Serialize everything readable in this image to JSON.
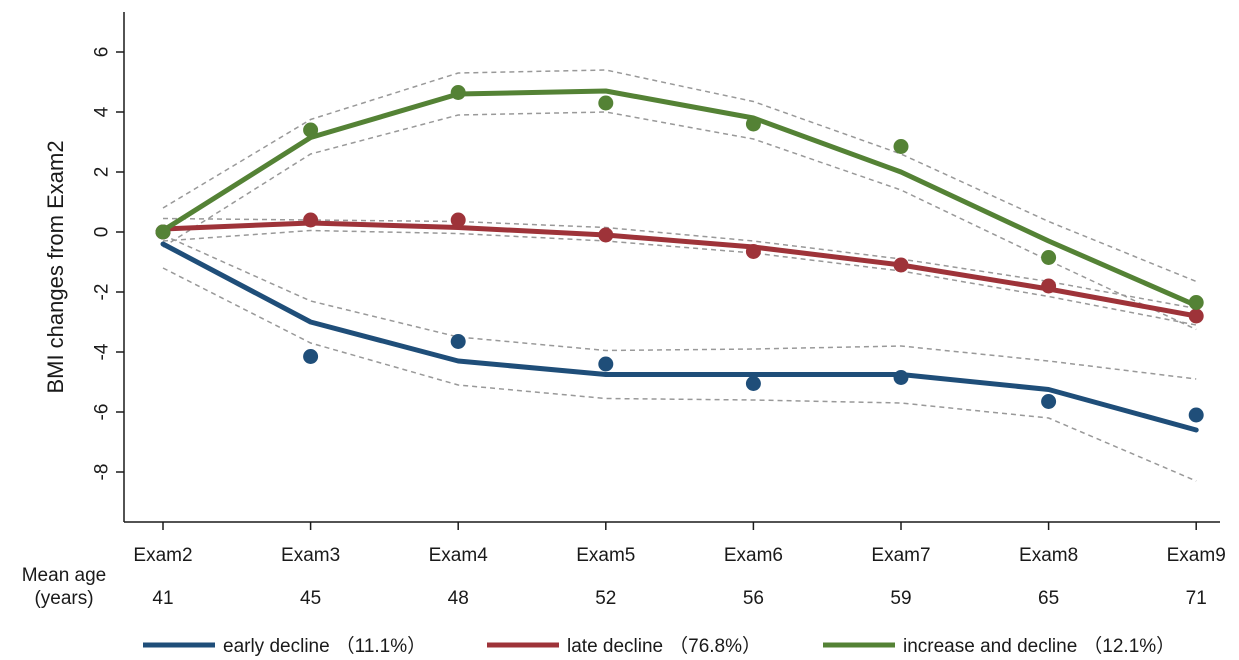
{
  "chart_data": {
    "type": "line",
    "ylabel": "BMI changes from Exam2",
    "ylim": [
      -8.6,
      7.3
    ],
    "yticks": [
      6,
      4,
      2,
      0,
      -2,
      -4,
      -6,
      -8
    ],
    "categories": [
      "Exam2",
      "Exam3",
      "Exam4",
      "Exam5",
      "Exam6",
      "Exam7",
      "Exam8",
      "Exam9"
    ],
    "age_row_label": [
      "Mean age",
      "(years)"
    ],
    "mean_ages": [
      "41",
      "45",
      "48",
      "52",
      "56",
      "59",
      "65",
      "71"
    ],
    "grid": false,
    "legend_position": "bottom",
    "series": [
      {
        "name": "early decline",
        "share": "（11.1%）",
        "color": "#1f4e79",
        "fitted": [
          -0.4,
          -3.0,
          -4.3,
          -4.75,
          -4.75,
          -4.75,
          -5.25,
          -6.6
        ],
        "observed": [
          0.0,
          -4.15,
          -3.65,
          -4.4,
          -5.05,
          -4.85,
          -5.65,
          -6.1
        ],
        "ci_upper": [
          -0.1,
          -2.3,
          -3.5,
          -3.95,
          -3.9,
          -3.8,
          -4.3,
          -4.9
        ],
        "ci_lower": [
          -1.2,
          -3.7,
          -5.1,
          -5.55,
          -5.6,
          -5.7,
          -6.2,
          -8.3
        ]
      },
      {
        "name": "late decline",
        "share": "（76.8%）",
        "color": "#9e3339",
        "fitted": [
          0.1,
          0.3,
          0.15,
          -0.1,
          -0.5,
          -1.1,
          -1.9,
          -2.8
        ],
        "observed": [
          0.0,
          0.4,
          0.4,
          -0.1,
          -0.65,
          -1.1,
          -1.8,
          -2.8
        ],
        "ci_upper": [
          0.45,
          0.4,
          0.35,
          0.15,
          -0.3,
          -0.9,
          -1.65,
          -2.55
        ],
        "ci_lower": [
          -0.3,
          0.05,
          -0.05,
          -0.3,
          -0.7,
          -1.3,
          -2.15,
          -3.1
        ]
      },
      {
        "name": "increase and decline",
        "share": "（12.1%）",
        "color": "#548235",
        "fitted": [
          0.05,
          3.15,
          4.6,
          4.7,
          3.8,
          2.0,
          -0.3,
          -2.45
        ],
        "observed": [
          0.0,
          3.4,
          4.65,
          4.3,
          3.6,
          2.85,
          -0.85,
          -2.35
        ],
        "ci_upper": [
          0.8,
          3.75,
          5.3,
          5.4,
          4.35,
          2.6,
          0.35,
          -1.65
        ],
        "ci_lower": [
          -0.5,
          2.6,
          3.9,
          4.0,
          3.1,
          1.4,
          -0.95,
          -3.25
        ]
      }
    ]
  }
}
